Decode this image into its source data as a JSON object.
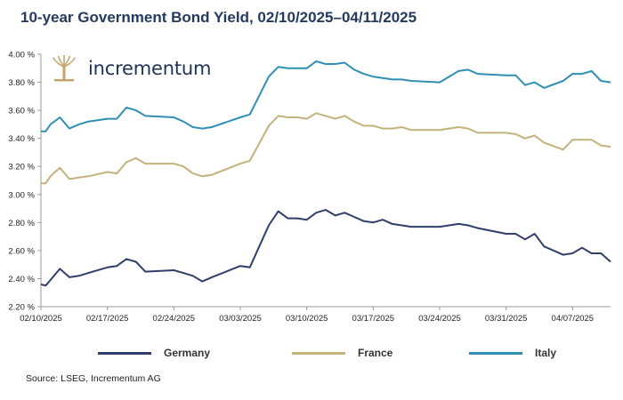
{
  "header": {
    "title": "10-year Government Bond Yield, 02/10/2025–04/11/2025"
  },
  "logo": {
    "text": "incrementum",
    "icon": "tree-icon",
    "color": "#c4a46b"
  },
  "source": "Source: LSEG, Incrementum AG",
  "chart_data": {
    "type": "line",
    "title": "10-year Government Bond Yield, 02/10/2025–04/11/2025",
    "xlabel": "",
    "ylabel": "",
    "ylim": [
      2.2,
      4.0
    ],
    "yticks": [
      2.2,
      2.4,
      2.6,
      2.8,
      3.0,
      3.2,
      3.4,
      3.6,
      3.8,
      4.0
    ],
    "ytick_labels": [
      "2.20 %",
      "2.40 %",
      "2.60 %",
      "2.80 %",
      "3.00 %",
      "3.20 %",
      "3.40 %",
      "3.60 %",
      "3.80 %",
      "4.00 %"
    ],
    "xlim": [
      0,
      60
    ],
    "xticks": [
      0,
      7,
      14,
      21,
      28,
      35,
      42,
      49,
      56
    ],
    "xtick_labels": [
      "02/10/2025",
      "02/17/2025",
      "02/24/2025",
      "03/03/2025",
      "03/10/2025",
      "03/17/2025",
      "03/24/2025",
      "03/31/2025",
      "04/07/2025"
    ],
    "grid": false,
    "legend_position": "bottom",
    "series": [
      {
        "name": "Germany",
        "color": "#2f3e6b",
        "x": [
          0,
          0.5,
          1,
          2,
          3,
          4,
          5,
          7,
          8,
          9,
          10,
          11,
          14,
          15,
          16,
          17,
          18,
          21,
          22,
          24,
          25,
          26,
          27,
          28,
          29,
          30,
          31,
          32,
          33,
          34,
          35,
          36,
          37,
          38,
          39,
          42,
          44,
          45,
          46,
          49,
          50,
          51,
          52,
          53,
          55,
          56,
          57,
          58,
          59,
          60
        ],
        "values": [
          2.36,
          2.35,
          2.39,
          2.47,
          2.41,
          2.42,
          2.44,
          2.48,
          2.49,
          2.54,
          2.52,
          2.45,
          2.46,
          2.44,
          2.42,
          2.38,
          2.41,
          2.49,
          2.48,
          2.78,
          2.88,
          2.83,
          2.83,
          2.82,
          2.87,
          2.89,
          2.85,
          2.87,
          2.84,
          2.81,
          2.8,
          2.82,
          2.79,
          2.78,
          2.77,
          2.77,
          2.79,
          2.78,
          2.76,
          2.72,
          2.72,
          2.68,
          2.72,
          2.63,
          2.57,
          2.58,
          2.62,
          2.58,
          2.58,
          2.52
        ]
      },
      {
        "name": "France",
        "color": "#c4b27c",
        "x": [
          0,
          0.5,
          1,
          2,
          3,
          4,
          5,
          7,
          8,
          9,
          10,
          11,
          14,
          15,
          16,
          17,
          18,
          21,
          22,
          24,
          25,
          26,
          27,
          28,
          29,
          30,
          31,
          32,
          33,
          34,
          35,
          36,
          37,
          38,
          39,
          42,
          44,
          45,
          46,
          49,
          50,
          51,
          52,
          53,
          55,
          56,
          57,
          58,
          59,
          60
        ],
        "values": [
          3.08,
          3.08,
          3.13,
          3.19,
          3.11,
          3.12,
          3.13,
          3.16,
          3.15,
          3.23,
          3.26,
          3.22,
          3.22,
          3.2,
          3.15,
          3.13,
          3.14,
          3.22,
          3.24,
          3.49,
          3.56,
          3.55,
          3.55,
          3.54,
          3.58,
          3.56,
          3.54,
          3.56,
          3.52,
          3.49,
          3.49,
          3.47,
          3.47,
          3.48,
          3.46,
          3.46,
          3.48,
          3.47,
          3.44,
          3.44,
          3.43,
          3.4,
          3.42,
          3.37,
          3.32,
          3.39,
          3.39,
          3.39,
          3.35,
          3.34
        ]
      },
      {
        "name": "Italy",
        "color": "#2f8fb5",
        "x": [
          0,
          0.5,
          1,
          2,
          3,
          4,
          5,
          7,
          8,
          9,
          10,
          11,
          14,
          15,
          16,
          17,
          18,
          21,
          22,
          24,
          25,
          26,
          27,
          28,
          29,
          30,
          31,
          32,
          33,
          34,
          35,
          36,
          37,
          38,
          39,
          42,
          44,
          45,
          46,
          49,
          50,
          51,
          52,
          53,
          55,
          56,
          57,
          58,
          59,
          60
        ],
        "values": [
          3.45,
          3.45,
          3.5,
          3.55,
          3.47,
          3.5,
          3.52,
          3.54,
          3.54,
          3.62,
          3.6,
          3.56,
          3.55,
          3.52,
          3.48,
          3.47,
          3.48,
          3.55,
          3.57,
          3.84,
          3.91,
          3.9,
          3.9,
          3.9,
          3.95,
          3.93,
          3.93,
          3.94,
          3.89,
          3.86,
          3.84,
          3.83,
          3.82,
          3.82,
          3.81,
          3.8,
          3.88,
          3.89,
          3.86,
          3.85,
          3.85,
          3.78,
          3.8,
          3.76,
          3.81,
          3.86,
          3.86,
          3.88,
          3.81,
          3.8
        ]
      }
    ]
  }
}
